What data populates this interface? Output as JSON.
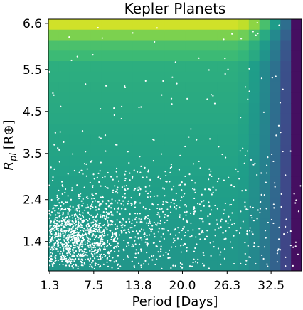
{
  "chart_data": {
    "type": "scatter",
    "title": "Kepler Planets",
    "xlabel": "Period [Days]",
    "ylabel_main": "R",
    "ylabel_sub": "pl",
    "ylabel_unit": "[R⊕]",
    "x_ticks": [
      "1.3",
      "7.5",
      "13.8",
      "20.0",
      "26.3",
      "32.5"
    ],
    "y_ticks": [
      "1.4",
      "2.4",
      "3.5",
      "4.5",
      "5.5",
      "6.6"
    ],
    "x_tick_values": [
      1.3,
      7.5,
      13.8,
      20.0,
      26.3,
      32.5
    ],
    "y_tick_values": [
      1.4,
      2.4,
      3.5,
      4.5,
      5.5,
      6.6
    ],
    "xlim": [
      1.1,
      36.8
    ],
    "ylim": [
      0.7,
      6.7
    ],
    "grid": false,
    "background_heatmap": {
      "colormap": "viridis",
      "x_bins": 24,
      "y_bins": 24,
      "description_of_trend": "value decreases sharply with period near the right edge; highest at largest radius"
    },
    "point_color": "#ffffff",
    "series": [
      {
        "clusters": [
          {
            "x_center": 4.5,
            "y_center": 1.45,
            "x_spread": 3.4,
            "y_spread": 0.42,
            "count": 900
          },
          {
            "x_center": 13.0,
            "y_center": 1.9,
            "x_spread": 9.5,
            "y_spread": 0.75,
            "count": 800
          },
          {
            "x_center": 18.0,
            "y_center": 3.2,
            "x_spread": 16.0,
            "y_spread": 1.6,
            "count": 260
          }
        ]
      }
    ]
  }
}
